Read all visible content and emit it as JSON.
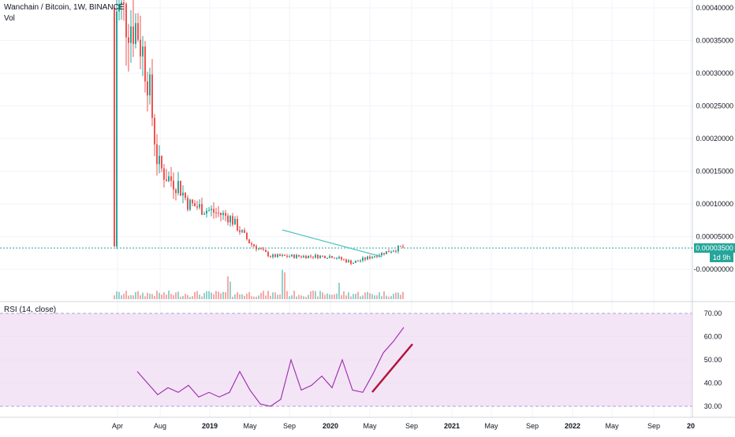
{
  "header": {
    "symbol_title": "Wanchain / Bitcoin, 1W, BINANCE",
    "volume_label": "Vol"
  },
  "rsi": {
    "label": "RSI (14, close)"
  },
  "last_price": {
    "value": "0.00003500",
    "countdown": "1d 9h"
  },
  "colors": {
    "up": "#26a69a",
    "down": "#ef5350",
    "trendline": "#4fc3c3",
    "rsi_line": "#9c27b0",
    "rsi_band": "#f3e5f5",
    "rsi_trendline": "#b2153d"
  },
  "chart_data": [
    {
      "type": "candlestick",
      "series_name": "Wanchain / Bitcoin",
      "x_ticks": [
        "Apr",
        "Aug",
        "2019",
        "May",
        "Sep",
        "2020",
        "May",
        "Sep",
        "2021",
        "May",
        "Sep",
        "2022",
        "May",
        "Sep",
        "20"
      ],
      "y_ticks": [
        "0.00040000",
        "0.00035000",
        "0.00030000",
        "0.00025000",
        "0.00020000",
        "0.00015000",
        "0.00010000",
        "0.00005000",
        "-0.00000000"
      ],
      "ylim": [
        -5e-06,
        0.00041
      ],
      "approx_close_path": [
        [
          "2018-04",
          0.0004
        ],
        [
          "2018-06",
          0.00037
        ],
        [
          "2018-07",
          0.0003
        ],
        [
          "2018-08",
          0.00016
        ],
        [
          "2018-09",
          0.00014
        ],
        [
          "2018-10",
          0.00013
        ],
        [
          "2018-11",
          0.0001
        ],
        [
          "2019-01",
          9e-05
        ],
        [
          "2019-03",
          8e-05
        ],
        [
          "2019-05",
          4e-05
        ],
        [
          "2019-07",
          2e-05
        ],
        [
          "2019-09",
          2e-05
        ],
        [
          "2019-11",
          2e-05
        ],
        [
          "2020-01",
          2e-05
        ],
        [
          "2020-03",
          1e-05
        ],
        [
          "2020-05",
          2e-05
        ],
        [
          "2020-08",
          3.5e-05
        ]
      ],
      "last_value": 3.5e-05
    },
    {
      "type": "line",
      "series_name": "RSI (14, close)",
      "y_ticks": [
        "70.00",
        "60.00",
        "50.00",
        "40.00",
        "30.00"
      ],
      "ylim": [
        27,
        73
      ],
      "band": [
        30,
        70
      ],
      "values": [
        [
          "2018-06",
          45
        ],
        [
          "2018-07",
          40
        ],
        [
          "2018-08",
          35
        ],
        [
          "2018-09",
          38
        ],
        [
          "2018-10",
          36
        ],
        [
          "2018-11",
          39
        ],
        [
          "2018-12",
          34
        ],
        [
          "2019-01",
          36
        ],
        [
          "2019-02",
          34
        ],
        [
          "2019-03",
          36
        ],
        [
          "2019-04",
          45
        ],
        [
          "2019-05",
          37
        ],
        [
          "2019-06",
          31
        ],
        [
          "2019-07",
          30
        ],
        [
          "2019-08",
          33
        ],
        [
          "2019-09",
          50
        ],
        [
          "2019-10",
          37
        ],
        [
          "2019-11",
          39
        ],
        [
          "2019-12",
          43
        ],
        [
          "2020-01",
          38
        ],
        [
          "2020-02",
          50
        ],
        [
          "2020-03",
          37
        ],
        [
          "2020-04",
          36
        ],
        [
          "2020-05",
          44
        ],
        [
          "2020-06",
          53
        ],
        [
          "2020-07",
          58
        ],
        [
          "2020-08",
          64
        ]
      ]
    }
  ]
}
